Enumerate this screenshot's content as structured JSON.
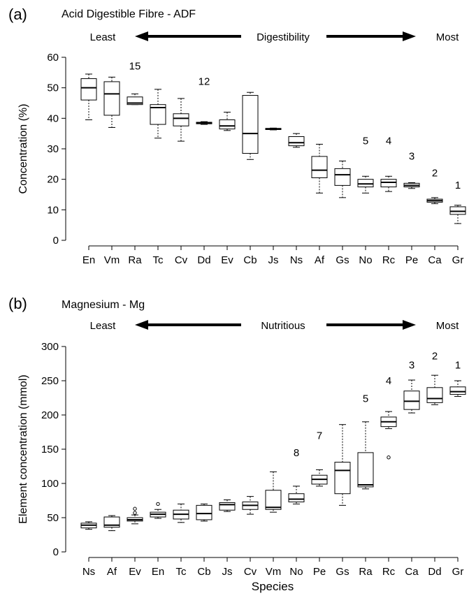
{
  "chart_data": [
    {
      "panel_label": "(a)",
      "title": "Acid Digestible Fibre - ADF",
      "type": "box",
      "xlabel": "",
      "ylabel": "Concentration (%)",
      "ylim": [
        0,
        60
      ],
      "yticks": [
        0,
        10,
        20,
        30,
        40,
        50,
        60
      ],
      "gradient": {
        "left": "Least",
        "center": "Digestibility",
        "right": "Most"
      },
      "categories": [
        "En",
        "Vm",
        "Ra",
        "Tc",
        "Cv",
        "Dd",
        "Ev",
        "Cb",
        "Js",
        "Ns",
        "Af",
        "Gs",
        "No",
        "Rc",
        "Pe",
        "Ca",
        "Gr"
      ],
      "boxes": [
        {
          "min": 39.5,
          "q1": 46,
          "median": 50,
          "q3": 53,
          "max": 54.5,
          "outliers": []
        },
        {
          "min": 37,
          "q1": 41,
          "median": 48,
          "q3": 52,
          "max": 53.5,
          "outliers": []
        },
        {
          "min": 44.5,
          "q1": 44.5,
          "median": 45,
          "q3": 47,
          "max": 48,
          "outliers": []
        },
        {
          "min": 33.5,
          "q1": 38,
          "median": 43.5,
          "q3": 44.5,
          "max": 49.5,
          "outliers": []
        },
        {
          "min": 32.5,
          "q1": 37.5,
          "median": 40,
          "q3": 41.5,
          "max": 46.5,
          "outliers": []
        },
        {
          "min": 38,
          "q1": 38.2,
          "median": 38.5,
          "q3": 38.7,
          "max": 38.9,
          "outliers": []
        },
        {
          "min": 36,
          "q1": 36.5,
          "median": 37.5,
          "q3": 39.5,
          "max": 42,
          "outliers": []
        },
        {
          "min": 26.5,
          "q1": 28.5,
          "median": 35,
          "q3": 47.5,
          "max": 48.5,
          "outliers": []
        },
        {
          "min": 36.2,
          "q1": 36.3,
          "median": 36.5,
          "q3": 36.7,
          "max": 36.8,
          "outliers": []
        },
        {
          "min": 30.5,
          "q1": 31,
          "median": 32,
          "q3": 34,
          "max": 35,
          "outliers": []
        },
        {
          "min": 15.5,
          "q1": 20.5,
          "median": 23,
          "q3": 27.5,
          "max": 31.5,
          "outliers": []
        },
        {
          "min": 14,
          "q1": 18,
          "median": 21.5,
          "q3": 23.5,
          "max": 26,
          "outliers": []
        },
        {
          "min": 15.5,
          "q1": 17.5,
          "median": 18.5,
          "q3": 20,
          "max": 21,
          "outliers": []
        },
        {
          "min": 16,
          "q1": 17.5,
          "median": 19,
          "q3": 20,
          "max": 21,
          "outliers": []
        },
        {
          "min": 17,
          "q1": 17.5,
          "median": 18,
          "q3": 18.7,
          "max": 18.9,
          "outliers": []
        },
        {
          "min": 12,
          "q1": 12.5,
          "median": 13,
          "q3": 13.5,
          "max": 14,
          "outliers": []
        },
        {
          "min": 5.5,
          "q1": 8.5,
          "median": 9.5,
          "q3": 11,
          "max": 11.5,
          "outliers": []
        }
      ],
      "annotations": [
        {
          "text": "15",
          "x": "Ra",
          "y": 56
        },
        {
          "text": "12",
          "x": "Dd",
          "y": 51
        },
        {
          "text": "5",
          "x": "No",
          "y": 31.5
        },
        {
          "text": "4",
          "x": "Rc",
          "y": 31.5
        },
        {
          "text": "3",
          "x": "Pe",
          "y": 26.5
        },
        {
          "text": "2",
          "x": "Ca",
          "y": 21
        },
        {
          "text": "1",
          "x": "Gr",
          "y": 17
        }
      ]
    },
    {
      "panel_label": "(b)",
      "title": "Magnesium - Mg",
      "type": "box",
      "xlabel": "Species",
      "ylabel": "Element concentration (mmol)",
      "ylim": [
        0,
        300
      ],
      "yticks": [
        0,
        50,
        100,
        150,
        200,
        250,
        300
      ],
      "gradient": {
        "left": "Least",
        "center": "Nutritious",
        "right": "Most"
      },
      "categories": [
        "Ns",
        "Af",
        "Ev",
        "En",
        "Tc",
        "Cb",
        "Js",
        "Cv",
        "Vm",
        "No",
        "Pe",
        "Gs",
        "Ra",
        "Rc",
        "Ca",
        "Dd",
        "Gr"
      ],
      "boxes": [
        {
          "min": 33,
          "q1": 35,
          "median": 39,
          "q3": 42,
          "max": 44,
          "outliers": []
        },
        {
          "min": 31,
          "q1": 36,
          "median": 39,
          "q3": 51,
          "max": 53,
          "outliers": []
        },
        {
          "min": 41,
          "q1": 45,
          "median": 47,
          "q3": 50,
          "max": 54,
          "outliers": [
            57,
            63
          ]
        },
        {
          "min": 49,
          "q1": 51,
          "median": 55,
          "q3": 58,
          "max": 62,
          "outliers": [
            70
          ]
        },
        {
          "min": 43,
          "q1": 48,
          "median": 55,
          "q3": 61,
          "max": 70,
          "outliers": []
        },
        {
          "min": 45,
          "q1": 47,
          "median": 56,
          "q3": 68,
          "max": 70,
          "outliers": []
        },
        {
          "min": 59,
          "q1": 61,
          "median": 69,
          "q3": 72,
          "max": 76,
          "outliers": []
        },
        {
          "min": 55,
          "q1": 62,
          "median": 68,
          "q3": 73,
          "max": 81,
          "outliers": []
        },
        {
          "min": 58,
          "q1": 62,
          "median": 65,
          "q3": 90,
          "max": 117,
          "outliers": []
        },
        {
          "min": 70,
          "q1": 73,
          "median": 77,
          "q3": 85,
          "max": 96,
          "outliers": []
        },
        {
          "min": 96,
          "q1": 99,
          "median": 106,
          "q3": 112,
          "max": 120,
          "outliers": []
        },
        {
          "min": 68,
          "q1": 85,
          "median": 119,
          "q3": 131,
          "max": 186,
          "outliers": []
        },
        {
          "min": 92,
          "q1": 95,
          "median": 98,
          "q3": 145,
          "max": 190,
          "outliers": []
        },
        {
          "min": 180,
          "q1": 183,
          "median": 190,
          "q3": 197,
          "max": 205,
          "outliers": [
            138
          ]
        },
        {
          "min": 203,
          "q1": 208,
          "median": 220,
          "q3": 235,
          "max": 251,
          "outliers": []
        },
        {
          "min": 215,
          "q1": 218,
          "median": 224,
          "q3": 240,
          "max": 258,
          "outliers": []
        },
        {
          "min": 227,
          "q1": 230,
          "median": 234,
          "q3": 241,
          "max": 250,
          "outliers": []
        }
      ],
      "annotations": [
        {
          "text": "8",
          "x": "No",
          "y": 140
        },
        {
          "text": "7",
          "x": "Pe",
          "y": 165
        },
        {
          "text": "5",
          "x": "Ra",
          "y": 219
        },
        {
          "text": "4",
          "x": "Rc",
          "y": 245
        },
        {
          "text": "3",
          "x": "Ca",
          "y": 268
        },
        {
          "text": "2",
          "x": "Dd",
          "y": 281
        },
        {
          "text": "1",
          "x": "Gr",
          "y": 268
        }
      ]
    }
  ]
}
